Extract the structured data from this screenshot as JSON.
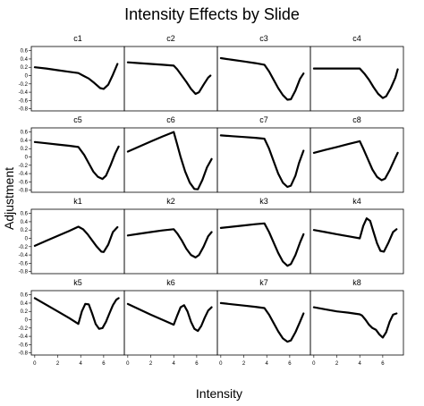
{
  "chart_data": {
    "type": "line",
    "title": "Intensity Effects by Slide",
    "xlabel": "Intensity",
    "ylabel": "Adjustment",
    "xlim": [
      -0.3,
      7.8
    ],
    "ylim": [
      -0.85,
      0.7
    ],
    "xticks": [
      0,
      2,
      4,
      6
    ],
    "yticks": [
      -0.8,
      -0.6,
      -0.4,
      -0.2,
      0,
      0.2,
      0.4,
      0.6
    ],
    "xtick_labels": [
      "0",
      "2",
      "4",
      "6"
    ],
    "ytick_labels": [
      "-0.8",
      "-0.6",
      "-0.4",
      "-0.2",
      "0",
      "0.2",
      "0.4",
      "0.6"
    ],
    "grid": false,
    "layout": "4x4 small multiples",
    "panels": [
      {
        "label": "c1",
        "x": [
          0,
          1,
          2,
          3,
          3.8,
          4.2,
          4.7,
          5.2,
          5.7,
          6.0,
          6.4,
          6.8,
          7.2
        ],
        "y": [
          0.2,
          0.17,
          0.13,
          0.09,
          0.06,
          0.0,
          -0.07,
          -0.18,
          -0.3,
          -0.32,
          -0.22,
          0.02,
          0.28
        ]
      },
      {
        "label": "c2",
        "x": [
          0,
          1,
          2,
          3,
          4,
          4.3,
          4.7,
          5.1,
          5.5,
          5.9,
          6.2,
          6.6,
          7.0,
          7.2
        ],
        "y": [
          0.32,
          0.3,
          0.28,
          0.26,
          0.24,
          0.15,
          0.0,
          -0.15,
          -0.32,
          -0.44,
          -0.4,
          -0.22,
          -0.05,
          0.0
        ]
      },
      {
        "label": "c3",
        "x": [
          0,
          1,
          2,
          3,
          3.8,
          4.2,
          4.6,
          5.0,
          5.4,
          5.8,
          6.1,
          6.5,
          6.9,
          7.2
        ],
        "y": [
          0.42,
          0.38,
          0.34,
          0.3,
          0.26,
          0.1,
          -0.1,
          -0.3,
          -0.47,
          -0.58,
          -0.57,
          -0.36,
          -0.08,
          0.05
        ]
      },
      {
        "label": "c4",
        "x": [
          0,
          1,
          2,
          3,
          4,
          4.4,
          4.8,
          5.2,
          5.6,
          6.0,
          6.3,
          6.7,
          7.1,
          7.3
        ],
        "y": [
          0.17,
          0.17,
          0.17,
          0.17,
          0.17,
          0.05,
          -0.1,
          -0.28,
          -0.44,
          -0.54,
          -0.5,
          -0.3,
          -0.05,
          0.15
        ]
      },
      {
        "label": "c5",
        "x": [
          0,
          1,
          2,
          3,
          3.8,
          4.3,
          4.7,
          5.1,
          5.5,
          5.9,
          6.2,
          6.6,
          7.0,
          7.3
        ],
        "y": [
          0.36,
          0.33,
          0.3,
          0.27,
          0.24,
          0.05,
          -0.15,
          -0.35,
          -0.48,
          -0.53,
          -0.45,
          -0.2,
          0.08,
          0.25
        ]
      },
      {
        "label": "c6",
        "x": [
          0,
          1,
          2,
          3,
          4,
          4.3,
          4.6,
          5.0,
          5.4,
          5.8,
          6.1,
          6.5,
          6.9,
          7.3
        ],
        "y": [
          0.13,
          0.25,
          0.37,
          0.49,
          0.6,
          0.3,
          0.0,
          -0.35,
          -0.62,
          -0.77,
          -0.78,
          -0.55,
          -0.25,
          -0.05
        ]
      },
      {
        "label": "c7",
        "x": [
          0,
          1,
          2,
          3,
          3.8,
          4.2,
          4.6,
          5.0,
          5.4,
          5.8,
          6.1,
          6.5,
          6.8,
          7.2
        ],
        "y": [
          0.52,
          0.5,
          0.48,
          0.46,
          0.44,
          0.2,
          -0.1,
          -0.4,
          -0.62,
          -0.72,
          -0.69,
          -0.45,
          -0.15,
          0.15
        ]
      },
      {
        "label": "c8",
        "x": [
          0,
          1,
          2,
          3,
          4,
          4.3,
          4.7,
          5.1,
          5.5,
          5.9,
          6.2,
          6.6,
          7.0,
          7.3
        ],
        "y": [
          0.1,
          0.17,
          0.24,
          0.31,
          0.38,
          0.2,
          -0.05,
          -0.3,
          -0.48,
          -0.56,
          -0.52,
          -0.32,
          -0.08,
          0.1
        ]
      },
      {
        "label": "k1",
        "x": [
          0,
          1,
          2,
          3,
          3.8,
          4.2,
          4.6,
          5.0,
          5.4,
          5.8,
          6.0,
          6.4,
          6.8,
          7.2
        ],
        "y": [
          -0.18,
          -0.06,
          0.06,
          0.18,
          0.28,
          0.22,
          0.1,
          -0.05,
          -0.2,
          -0.32,
          -0.33,
          -0.15,
          0.15,
          0.27
        ]
      },
      {
        "label": "k2",
        "x": [
          0,
          1,
          2,
          3,
          4,
          4.3,
          4.7,
          5.1,
          5.5,
          5.9,
          6.2,
          6.6,
          7.0,
          7.3
        ],
        "y": [
          0.07,
          0.11,
          0.15,
          0.19,
          0.22,
          0.12,
          -0.05,
          -0.25,
          -0.4,
          -0.46,
          -0.4,
          -0.2,
          0.05,
          0.15
        ]
      },
      {
        "label": "k3",
        "x": [
          0,
          1,
          2,
          3,
          3.8,
          4.2,
          4.6,
          5.0,
          5.4,
          5.8,
          6.1,
          6.5,
          6.9,
          7.2
        ],
        "y": [
          0.25,
          0.28,
          0.31,
          0.34,
          0.36,
          0.15,
          -0.1,
          -0.35,
          -0.56,
          -0.66,
          -0.62,
          -0.4,
          -0.1,
          0.1
        ]
      },
      {
        "label": "k4",
        "x": [
          0,
          1,
          2,
          3,
          4,
          4.3,
          4.6,
          4.9,
          5.2,
          5.5,
          5.8,
          6.1,
          6.5,
          6.9,
          7.2
        ],
        "y": [
          0.2,
          0.15,
          0.1,
          0.05,
          0.0,
          0.3,
          0.48,
          0.42,
          0.15,
          -0.12,
          -0.3,
          -0.32,
          -0.1,
          0.15,
          0.22
        ]
      },
      {
        "label": "k5",
        "x": [
          0,
          1,
          2,
          3,
          3.8,
          4.1,
          4.4,
          4.7,
          5.0,
          5.3,
          5.6,
          5.9,
          6.2,
          6.5,
          6.8,
          7.1,
          7.3
        ],
        "y": [
          0.52,
          0.36,
          0.2,
          0.04,
          -0.1,
          0.2,
          0.38,
          0.37,
          0.15,
          -0.1,
          -0.22,
          -0.2,
          -0.05,
          0.15,
          0.35,
          0.48,
          0.52
        ]
      },
      {
        "label": "k6",
        "x": [
          0,
          1,
          2,
          3,
          4,
          4.3,
          4.6,
          4.9,
          5.2,
          5.5,
          5.8,
          6.1,
          6.4,
          6.7,
          7.0,
          7.3
        ],
        "y": [
          0.38,
          0.25,
          0.12,
          0.0,
          -0.12,
          0.1,
          0.3,
          0.35,
          0.2,
          -0.05,
          -0.22,
          -0.27,
          -0.15,
          0.05,
          0.22,
          0.3
        ]
      },
      {
        "label": "k7",
        "x": [
          0,
          1,
          2,
          3,
          3.8,
          4.2,
          4.6,
          5.0,
          5.4,
          5.8,
          6.1,
          6.5,
          6.9,
          7.2
        ],
        "y": [
          0.4,
          0.37,
          0.34,
          0.31,
          0.28,
          0.12,
          -0.08,
          -0.28,
          -0.45,
          -0.53,
          -0.5,
          -0.3,
          -0.05,
          0.15
        ]
      },
      {
        "label": "k8",
        "x": [
          0,
          1,
          2,
          3,
          4,
          4.2,
          4.5,
          4.8,
          5.1,
          5.4,
          5.7,
          6.0,
          6.3,
          6.6,
          6.9,
          7.2
        ],
        "y": [
          0.3,
          0.25,
          0.2,
          0.17,
          0.13,
          0.1,
          0.0,
          -0.12,
          -0.2,
          -0.24,
          -0.35,
          -0.43,
          -0.3,
          -0.05,
          0.12,
          0.15
        ]
      }
    ]
  }
}
